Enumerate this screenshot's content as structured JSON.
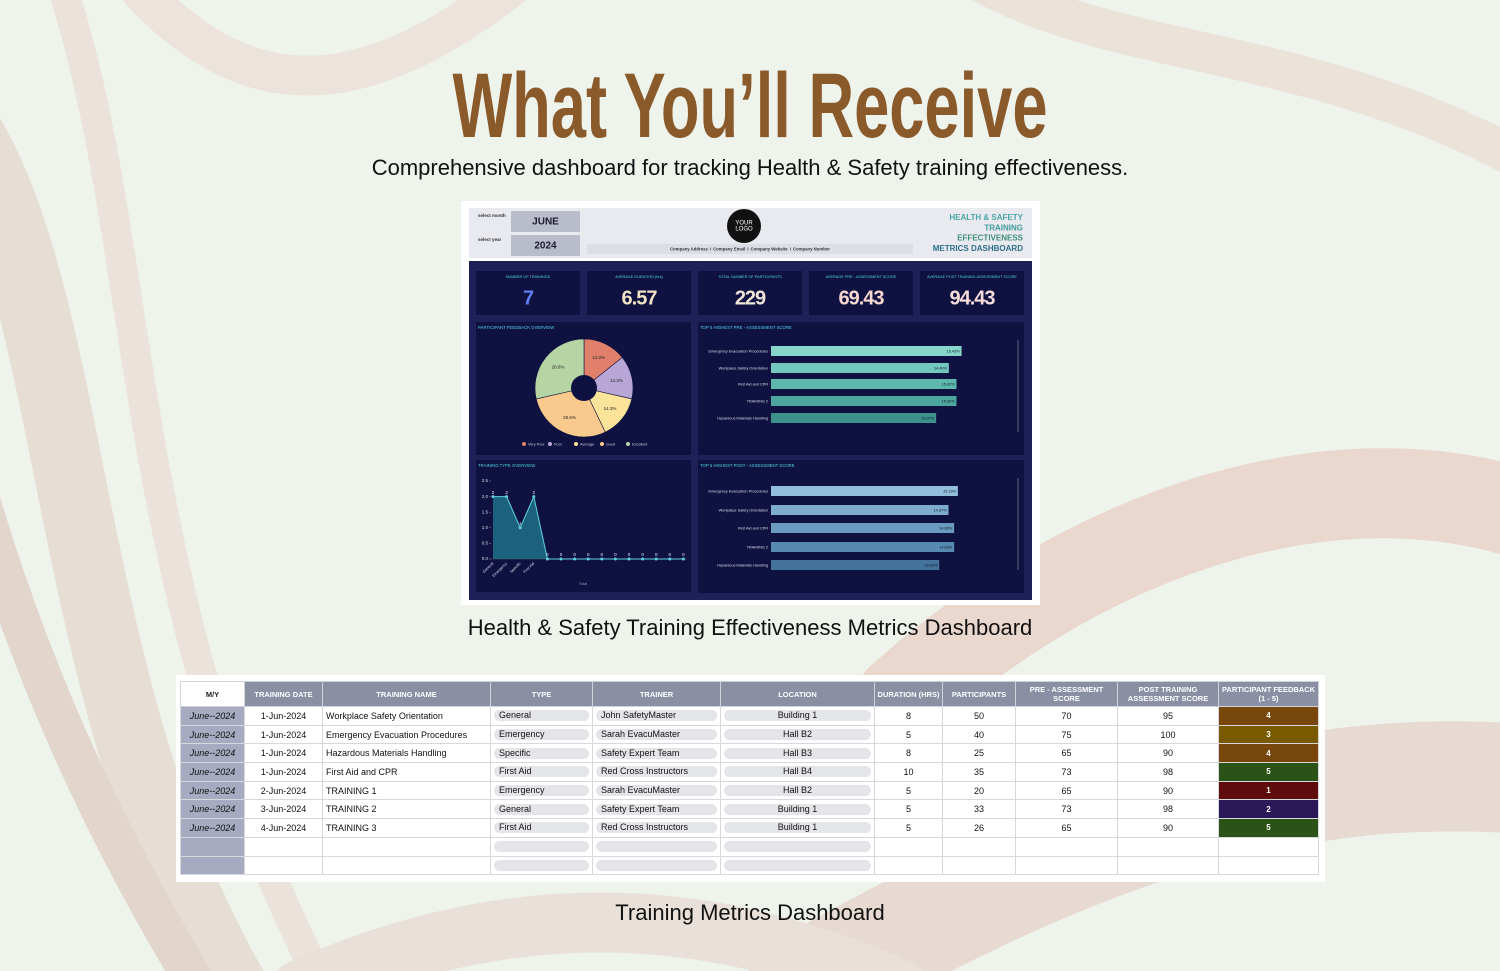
{
  "header": {
    "title": "What You’ll Receive",
    "subtitle": "Comprehensive dashboard for tracking Health & Safety training effectiveness."
  },
  "dashboard": {
    "select_month_label": "select month",
    "month": "JUNE",
    "select_year_label": "select year",
    "year": "2024",
    "logo": [
      "YOUR",
      "LOGO"
    ],
    "company_info": [
      "Company Address",
      "Company Email",
      "Company Website",
      "Company Number"
    ],
    "company_separator": "I",
    "title_lines": [
      "HEALTH & SAFETY",
      "TRAINING",
      "EFFECTIVENESS",
      "METRICS DASHBOARD"
    ],
    "kpis": [
      {
        "label": "NUMBER OF TRAININGS",
        "value": 7,
        "color": "#5d7ff2"
      },
      {
        "label": "AVERAGE DURATION (hrs)",
        "value": 6.57,
        "color": "#f2e3c4"
      },
      {
        "label": "TOTAL NUMBER OF PARTICIPANTS",
        "value": 229,
        "color": "#f0e6d8"
      },
      {
        "label": "AVERAGE PRE - ASSESSMENT SCORE",
        "value": 69.43,
        "color": "#f6d6cf"
      },
      {
        "label": "AVERAGE POST TRAINING ASSESSMENT SCORE",
        "value": 94.43,
        "color": "#f8dcdc"
      }
    ],
    "pie": {
      "type": "pie",
      "title": "PARTICIPANT FEEDBACK OVERVIEW",
      "categories": [
        "Very Poor",
        "Poor",
        "Average",
        "Good",
        "Excellent"
      ],
      "values": [
        14.3,
        14.3,
        14.3,
        28.6,
        28.6
      ],
      "value_labels": [
        "14.3%",
        "14.3%",
        "14.3%",
        "28.6%",
        "28.6%"
      ],
      "colors": [
        "#e0806a",
        "#b7a6d6",
        "#fbe49a",
        "#f9c98d",
        "#b5d6a4"
      ]
    },
    "pre_bars": {
      "type": "bar",
      "title": "TOP 5 HIGHEST PRE - ASSESSMENT SCORE",
      "categories": [
        "Emergency Evacuation Procedures",
        "Workplace Safety Orientation",
        "First Aid and CPR",
        "TRAINING 2",
        "Hazardous Materials Handling"
      ],
      "values": [
        15.43,
        14.4,
        15.02,
        15.02,
        13.37
      ],
      "value_labels": [
        "15.43%",
        "14.40%",
        "15.02%",
        "15.02%",
        "13.37%"
      ],
      "xlim": [
        0,
        20
      ],
      "colors": [
        "#86d6cc",
        "#72c8be",
        "#5fb8ae",
        "#4ca69d",
        "#3c918a"
      ]
    },
    "post_bars": {
      "type": "bar",
      "title": "TOP 5 HIGHEST POST - ASSESSMENT SCORE",
      "categories": [
        "Emergency Evacuation Procedures",
        "Workplace Safety Orientation",
        "First Aid and CPR",
        "TRAINING 2",
        "Hazardous Materials Handling"
      ],
      "values": [
        15.13,
        14.37,
        14.83,
        14.83,
        13.62
      ],
      "value_labels": [
        "15.13%",
        "14.37%",
        "14.83%",
        "14.83%",
        "13.62%"
      ],
      "xlim": [
        0,
        20
      ],
      "colors": [
        "#93bedc",
        "#7daccf",
        "#699bc1",
        "#578ab2",
        "#43739b"
      ]
    },
    "line": {
      "type": "line",
      "title": "TRAINING TYPE OVERVIEW",
      "categories": [
        "General",
        "Emergency",
        "Specific",
        "First Aid",
        null,
        null,
        null,
        null,
        null,
        null,
        null,
        null,
        null,
        null,
        null
      ],
      "values": [
        2,
        2,
        1,
        2,
        0,
        0,
        0,
        0,
        0,
        0,
        0,
        0,
        0,
        0,
        0
      ],
      "ylim": [
        0,
        2.5
      ],
      "yticks": [
        {
          "value": 0,
          "label": "0.0"
        },
        0.5,
        {
          "value": 1,
          "label": "1.0"
        },
        1.5,
        {
          "value": 2,
          "label": "2.0"
        },
        2.5
      ],
      "x_label": "Total",
      "color": "#5fd3e0"
    }
  },
  "caption_dashboard": "Health & Safety Training Effectiveness Metrics Dashboard",
  "table": {
    "columns": [
      "M/Y",
      "TRAINING DATE",
      "TRAINING NAME",
      "TYPE",
      "TRAINER",
      "LOCATION",
      "DURATION (HRS)",
      "PARTICIPANTS",
      "PRE - ASSESSMENT SCORE",
      "POST TRAINING ASSESSMENT SCORE",
      "PARTICIPANT FEEDBACK (1 - 5)"
    ],
    "rows": [
      [
        "June--2024",
        "1-Jun-2024",
        "Workplace Safety Orientation",
        "General",
        "John SafetyMaster",
        "Building 1",
        8,
        50,
        70,
        95,
        4
      ],
      [
        "June--2024",
        "1-Jun-2024",
        "Emergency Evacuation Procedures",
        "Emergency",
        "Sarah EvacuMaster",
        "Hall B2",
        5,
        40,
        75,
        100,
        3
      ],
      [
        "June--2024",
        "1-Jun-2024",
        "Hazardous Materials Handling",
        "Specific",
        "Safety Expert Team",
        "Hall B3",
        8,
        25,
        65,
        90,
        4
      ],
      [
        "June--2024",
        "1-Jun-2024",
        "First Aid and CPR",
        "First Aid",
        "Red Cross Instructors",
        "Hall B4",
        10,
        35,
        73,
        98,
        5
      ],
      [
        "June--2024",
        "2-Jun-2024",
        "TRAINING 1",
        "Emergency",
        "Sarah EvacuMaster",
        "Hall B2",
        5,
        20,
        65,
        90,
        1
      ],
      [
        "June--2024",
        "3-Jun-2024",
        "TRAINING 2",
        "General",
        "Safety Expert Team",
        "Building 1",
        5,
        33,
        73,
        98,
        2
      ],
      [
        "June--2024",
        "4-Jun-2024",
        "TRAINING 3",
        "First Aid",
        "Red Cross Instructors",
        "Building 1",
        5,
        26,
        65,
        90,
        5
      ]
    ],
    "feedback_colors": {
      "1": "#5e0c0c",
      "2": "#2a1858",
      "3": "#7a5a00",
      "4": "#77470b",
      "5": "#2b5317"
    }
  },
  "caption_table": "Training Metrics Dashboard"
}
